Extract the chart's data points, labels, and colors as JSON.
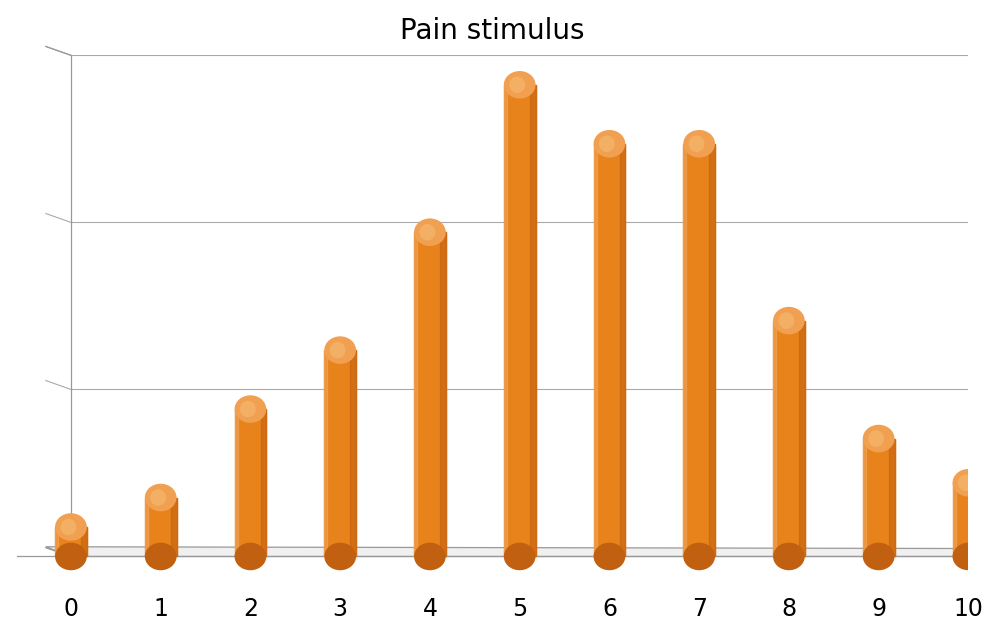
{
  "title": "Pain stimulus",
  "categories": [
    0,
    1,
    2,
    3,
    4,
    5,
    6,
    7,
    8,
    9,
    10
  ],
  "values": [
    2,
    4,
    10,
    14,
    22,
    32,
    28,
    28,
    16,
    8,
    5
  ],
  "bar_color_main": "#E8821A",
  "bar_color_dark": "#C06010",
  "bar_color_top": "#F0A050",
  "bar_color_highlight": "#F5B870",
  "background_color": "#FFFFFF",
  "title_fontsize": 20,
  "tick_fontsize": 17,
  "ylim": [
    0,
    34
  ],
  "grid_color": "#AAAAAA",
  "floor_color": "#DDDDDD",
  "perspective_color": "#999999"
}
